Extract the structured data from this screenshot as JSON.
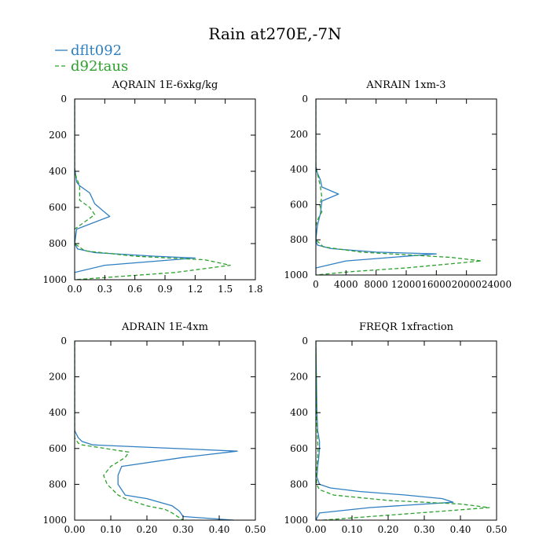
{
  "title": "Rain at270E,-7N",
  "legend": [
    {
      "name": "dflt092",
      "color": "#2f7fc1",
      "dash": "solid"
    },
    {
      "name": "d92taus",
      "color": "#2ca02c",
      "dash": "dashed"
    }
  ],
  "chart_data": [
    {
      "type": "line",
      "title": "AQRAIN 1E-6xkg/kg",
      "xlim": [
        0,
        1.8
      ],
      "xticks": [
        0,
        0.3,
        0.6,
        0.9,
        1.2,
        1.5,
        1.8
      ],
      "xtick_labels": [
        "0.0",
        "0.3",
        "0.6",
        "0.9",
        "1.2",
        "1.5",
        "1.8"
      ],
      "ylim": [
        1000,
        0
      ],
      "yticks": [
        0,
        200,
        400,
        600,
        800,
        1000
      ],
      "ytick_labels": [
        "0",
        "200",
        "400",
        "600",
        "800",
        "1000"
      ],
      "series": [
        {
          "name": "dflt092",
          "x": [
            0,
            0,
            0.01,
            0.02,
            0.05,
            0.15,
            0.2,
            0.35,
            0.02,
            0.0,
            0.03,
            0.2,
            0.8,
            1.2,
            0.3,
            0.0,
            0.0
          ],
          "y": [
            0,
            380,
            420,
            460,
            480,
            520,
            580,
            650,
            720,
            800,
            830,
            850,
            870,
            880,
            920,
            960,
            1000
          ]
        },
        {
          "name": "d92taus",
          "x": [
            0,
            0,
            0.02,
            0.05,
            0.05,
            0.15,
            0.2,
            0.1,
            0.0,
            0.0,
            0.1,
            0.6,
            1.3,
            1.55,
            1.0,
            0.5,
            0.0
          ],
          "y": [
            0,
            400,
            440,
            480,
            560,
            600,
            640,
            680,
            720,
            800,
            840,
            870,
            890,
            920,
            960,
            980,
            1000
          ]
        }
      ]
    },
    {
      "type": "line",
      "title": "ANRAIN 1xm-3",
      "xlim": [
        0,
        24000
      ],
      "xticks": [
        0,
        4000,
        8000,
        12000,
        16000,
        20000,
        24000
      ],
      "xtick_labels": [
        "0",
        "4000",
        "8000",
        "12000",
        "16000",
        "20000",
        "24000"
      ],
      "ylim": [
        1000,
        0
      ],
      "yticks": [
        0,
        200,
        400,
        600,
        800,
        1000
      ],
      "ytick_labels": [
        "0",
        "200",
        "400",
        "600",
        "800",
        "1000"
      ],
      "series": [
        {
          "name": "dflt092",
          "x": [
            0,
            0,
            200,
            600,
            800,
            3000,
            800,
            600,
            200,
            0,
            200,
            2000,
            8000,
            16000,
            4000,
            0,
            0
          ],
          "y": [
            0,
            380,
            420,
            460,
            500,
            540,
            580,
            650,
            720,
            800,
            830,
            850,
            870,
            880,
            920,
            960,
            1000
          ]
        },
        {
          "name": "d92taus",
          "x": [
            0,
            0,
            300,
            600,
            800,
            500,
            800,
            300,
            0,
            0,
            1000,
            6000,
            18000,
            22000,
            12000,
            5000,
            0
          ],
          "y": [
            0,
            400,
            440,
            500,
            560,
            600,
            640,
            680,
            720,
            800,
            840,
            870,
            900,
            920,
            960,
            980,
            1000
          ]
        }
      ]
    },
    {
      "type": "line",
      "title": "ADRAIN 1E-4xm",
      "xlim": [
        0,
        0.5
      ],
      "xticks": [
        0,
        0.1,
        0.2,
        0.3,
        0.4,
        0.5
      ],
      "xtick_labels": [
        "0.00",
        "0.10",
        "0.20",
        "0.30",
        "0.40",
        "0.50"
      ],
      "ylim": [
        1000,
        0
      ],
      "yticks": [
        0,
        200,
        400,
        600,
        800,
        1000
      ],
      "ytick_labels": [
        "0",
        "200",
        "400",
        "600",
        "800",
        "1000"
      ],
      "series": [
        {
          "name": "dflt092",
          "x": [
            0,
            0,
            0.01,
            0.02,
            0.05,
            0.45,
            0.3,
            0.13,
            0.12,
            0.12,
            0.13,
            0.14,
            0.2,
            0.27,
            0.29,
            0.3,
            0.44
          ],
          "y": [
            0,
            500,
            540,
            560,
            580,
            615,
            650,
            700,
            750,
            800,
            830,
            860,
            880,
            920,
            950,
            980,
            1000
          ]
        },
        {
          "name": "d92taus",
          "x": [
            0,
            0,
            0.01,
            0.02,
            0.15,
            0.14,
            0.1,
            0.08,
            0.09,
            0.11,
            0.12,
            0.14,
            0.2,
            0.25,
            0.27,
            0.3
          ],
          "y": [
            0,
            540,
            570,
            580,
            620,
            650,
            700,
            750,
            800,
            840,
            860,
            880,
            920,
            940,
            960,
            1000
          ]
        }
      ]
    },
    {
      "type": "line",
      "title": "FREQR 1xfraction",
      "xlim": [
        0,
        0.5
      ],
      "xticks": [
        0,
        0.1,
        0.2,
        0.3,
        0.4,
        0.5
      ],
      "xtick_labels": [
        "0.00",
        "0.10",
        "0.20",
        "0.30",
        "0.40",
        "0.50"
      ],
      "ylim": [
        1000,
        0
      ],
      "yticks": [
        0,
        200,
        400,
        600,
        800,
        1000
      ],
      "ytick_labels": [
        "0",
        "200",
        "400",
        "600",
        "800",
        "1000"
      ],
      "series": [
        {
          "name": "dflt092",
          "x": [
            0,
            0.003,
            0.005,
            0.01,
            0.01,
            0.008,
            0.005,
            0.003,
            0.01,
            0.04,
            0.12,
            0.25,
            0.35,
            0.38,
            0.15,
            0.01,
            0
          ],
          "y": [
            0,
            400,
            500,
            560,
            600,
            650,
            700,
            760,
            800,
            820,
            840,
            860,
            880,
            900,
            930,
            960,
            1000
          ]
        },
        {
          "name": "d92taus",
          "x": [
            0,
            0.002,
            0.004,
            0.006,
            0.005,
            0.003,
            0.002,
            0.002,
            0.01,
            0.05,
            0.2,
            0.4,
            0.48,
            0.35,
            0.15,
            0.02
          ],
          "y": [
            0,
            420,
            520,
            600,
            650,
            700,
            760,
            800,
            830,
            860,
            890,
            910,
            930,
            950,
            980,
            1000
          ]
        }
      ]
    }
  ]
}
